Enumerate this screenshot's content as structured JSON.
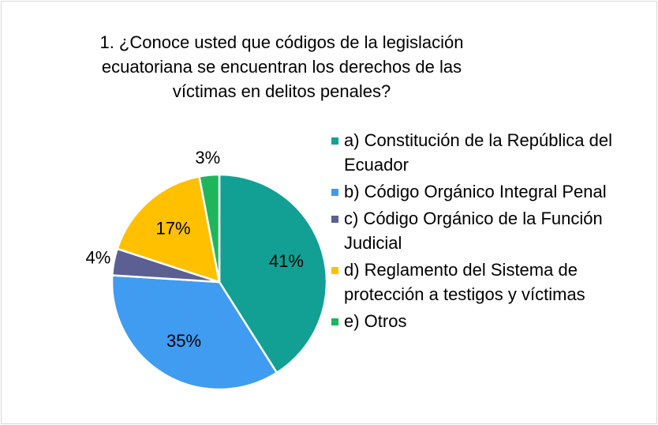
{
  "chart_data": {
    "type": "pie",
    "title": "1. ¿Conoce usted que códigos de la legislación ecuatoriana se encuentran los derechos de las víctimas en delitos penales?",
    "categories": [
      "a) Constitución de la República del Ecuador",
      "b) Código Orgánico Integral Penal",
      "c) Código Orgánico de la Función Judicial",
      "d) Reglamento del Sistema de protección a testigos y víctimas",
      "e) Otros"
    ],
    "values": [
      41,
      35,
      4,
      17,
      3
    ],
    "value_labels": [
      "41%",
      "35%",
      "4%",
      "17%",
      "3%"
    ],
    "colors": [
      "#12a094",
      "#3f9cf1",
      "#5b5f91",
      "#ffc000",
      "#1fb55c"
    ],
    "legend": "right"
  }
}
